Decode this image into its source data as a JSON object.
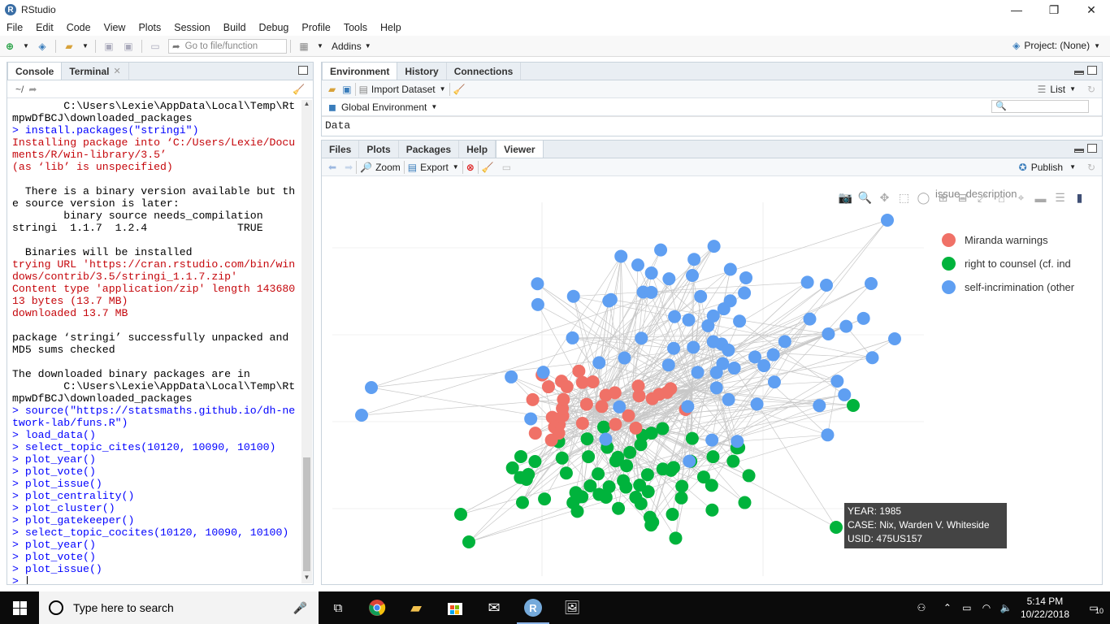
{
  "window": {
    "title": "RStudio",
    "logo_letter": "R",
    "controls": [
      "—",
      "❐",
      "✕"
    ]
  },
  "menu": [
    "File",
    "Edit",
    "Code",
    "View",
    "Plots",
    "Session",
    "Build",
    "Debug",
    "Profile",
    "Tools",
    "Help"
  ],
  "toolbar": {
    "goto_placeholder": "Go to file/function",
    "addins_label": "Addins",
    "project_label": "Project: (None)"
  },
  "console_panel": {
    "tabs": [
      {
        "label": "Console"
      },
      {
        "label": "Terminal"
      }
    ],
    "path": "~/",
    "lines": [
      {
        "t": "        C:\\Users\\Lexie\\AppData\\Local\\Temp\\Rt",
        "c": "k"
      },
      {
        "t": "mpwDfBCJ\\downloaded_packages",
        "c": "k"
      },
      {
        "t": "> install.packages(\"stringi\")",
        "c": "b"
      },
      {
        "t": "Installing package into ‘C:/Users/Lexie/Docu",
        "c": "r"
      },
      {
        "t": "ments/R/win-library/3.5’",
        "c": "r"
      },
      {
        "t": "(as ‘lib’ is unspecified)",
        "c": "r"
      },
      {
        "t": "",
        "c": "k"
      },
      {
        "t": "  There is a binary version available but th",
        "c": "k"
      },
      {
        "t": "e source version is later:",
        "c": "k"
      },
      {
        "t": "        binary source needs_compilation",
        "c": "k"
      },
      {
        "t": "stringi  1.1.7  1.2.4              TRUE",
        "c": "k"
      },
      {
        "t": "",
        "c": "k"
      },
      {
        "t": "  Binaries will be installed",
        "c": "k"
      },
      {
        "t": "trying URL 'https://cran.rstudio.com/bin/win",
        "c": "r"
      },
      {
        "t": "dows/contrib/3.5/stringi_1.1.7.zip'",
        "c": "r"
      },
      {
        "t": "Content type 'application/zip' length 143680",
        "c": "r"
      },
      {
        "t": "13 bytes (13.7 MB)",
        "c": "r"
      },
      {
        "t": "downloaded 13.7 MB",
        "c": "r"
      },
      {
        "t": "",
        "c": "k"
      },
      {
        "t": "package ‘stringi’ successfully unpacked and",
        "c": "k"
      },
      {
        "t": "MD5 sums checked",
        "c": "k"
      },
      {
        "t": "",
        "c": "k"
      },
      {
        "t": "The downloaded binary packages are in",
        "c": "k"
      },
      {
        "t": "        C:\\Users\\Lexie\\AppData\\Local\\Temp\\Rt",
        "c": "k"
      },
      {
        "t": "mpwDfBCJ\\downloaded_packages",
        "c": "k"
      },
      {
        "t": "> source(\"https://statsmaths.github.io/dh-ne",
        "c": "b"
      },
      {
        "t": "twork-lab/funs.R\")",
        "c": "b"
      },
      {
        "t": "> load_data()",
        "c": "b"
      },
      {
        "t": "> select_topic_cites(10120, 10090, 10100)",
        "c": "b"
      },
      {
        "t": "> plot_year()",
        "c": "b"
      },
      {
        "t": "> plot_vote()",
        "c": "b"
      },
      {
        "t": "> plot_issue()",
        "c": "b"
      },
      {
        "t": "> plot_centrality()",
        "c": "b"
      },
      {
        "t": "> plot_cluster()",
        "c": "b"
      },
      {
        "t": "> plot_gatekeeper()",
        "c": "b"
      },
      {
        "t": "> select_topic_cocites(10120, 10090, 10100)",
        "c": "b"
      },
      {
        "t": "> plot_year()",
        "c": "b"
      },
      {
        "t": "> plot_vote()",
        "c": "b"
      },
      {
        "t": "> plot_issue()",
        "c": "b"
      },
      {
        "t": "> ",
        "c": "b"
      }
    ]
  },
  "env_panel": {
    "tabs": [
      {
        "label": "Environment"
      },
      {
        "label": "History"
      },
      {
        "label": "Connections"
      }
    ],
    "import_label": "Import Dataset",
    "list_label": "List",
    "scope_label": "Global Environment",
    "data_header": "Data"
  },
  "viewer_panel": {
    "tabs": [
      {
        "label": "Files"
      },
      {
        "label": "Plots"
      },
      {
        "label": "Packages"
      },
      {
        "label": "Help"
      },
      {
        "label": "Viewer"
      }
    ],
    "zoom_label": "Zoom",
    "export_label": "Export",
    "publish_label": "Publish",
    "legend_title": "issue_description",
    "legend": [
      {
        "label": "Miranda warnings",
        "color": "#f07167"
      },
      {
        "label": "right to counsel (cf. ind",
        "color": "#00b33c"
      },
      {
        "label": "self-incrimination (other",
        "color": "#5f9ff2"
      }
    ],
    "tooltip": [
      "YEAR: 1985",
      "CASE: Nix, Warden V. Whiteside",
      "USID: 475US157"
    ]
  },
  "taskbar": {
    "search_placeholder": "Type here to search",
    "time": "5:14 PM",
    "date": "10/22/2018",
    "notifications": "10"
  }
}
